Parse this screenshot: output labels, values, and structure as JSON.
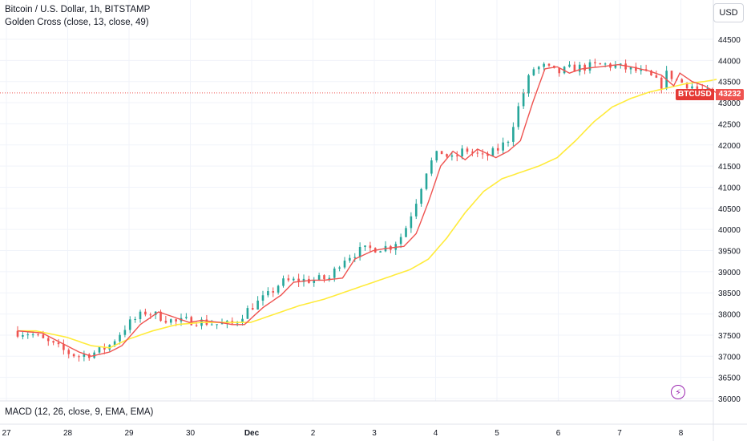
{
  "header": {
    "title": "Bitcoin / U.S. Dollar, 1h, BITSTAMP",
    "indicator": "Golden Cross (close, 13, close, 49)",
    "currency": "USD"
  },
  "macd_label": "MACD (12, 26, close, 9, EMA, EMA)",
  "last_price": {
    "symbol": "BTCUSD",
    "value": "43232"
  },
  "colors": {
    "up": "#26a69a",
    "down": "#ef5350",
    "fast_ma": "#ef5350",
    "slow_ma": "#ffeb3b",
    "accent": "#9c27b0"
  },
  "icons": {
    "bolt": "lightning-icon"
  },
  "chart_data": {
    "type": "line",
    "ylim": [
      36000,
      44700
    ],
    "y_ticks": [
      36000,
      36500,
      37000,
      37500,
      38000,
      38500,
      39000,
      39500,
      40000,
      40500,
      41000,
      41500,
      42000,
      42500,
      43000,
      43500,
      44000,
      44500
    ],
    "x_tick_labels": [
      "27",
      "28",
      "29",
      "30",
      "Dec",
      "2",
      "3",
      "4",
      "5",
      "6",
      "7",
      "8"
    ],
    "x_range_days": [
      0,
      11.7
    ],
    "series": [
      {
        "x": [
          0,
          0.4,
          0.8,
          1.0,
          1.2,
          1.5,
          1.7,
          2.0,
          2.3,
          2.5,
          2.8,
          3.0,
          3.3,
          3.5,
          3.7,
          4.0,
          4.3,
          4.5,
          4.8,
          5.0,
          5.3,
          5.5,
          5.8,
          6.0,
          6.3,
          6.5,
          6.7,
          6.9,
          7.1,
          7.3,
          7.5,
          7.8,
          8.0,
          8.2,
          8.4,
          8.6,
          8.8,
          9.0,
          9.2,
          9.5,
          9.8,
          10.0,
          10.3,
          10.5,
          10.7,
          10.8,
          11.0,
          11.2,
          11.4
        ],
        "values": [
          37600,
          37550,
          37250,
          37100,
          37000,
          37100,
          37250,
          37750,
          38050,
          37950,
          37800,
          37850,
          37800,
          37750,
          37750,
          38150,
          38450,
          38750,
          38800,
          38800,
          38850,
          39300,
          39500,
          39550,
          39600,
          39900,
          40650,
          41500,
          41850,
          41650,
          41900,
          41700,
          41850,
          42100,
          43000,
          43800,
          43850,
          43700,
          43800,
          43850,
          43900,
          43850,
          43750,
          43650,
          43400,
          43700,
          43500,
          43400,
          43232
        ]
      },
      {
        "x": [
          0,
          0.3,
          0.8,
          1.2,
          1.5,
          1.8,
          2.2,
          2.6,
          3.0,
          3.4,
          3.8,
          4.2,
          4.6,
          5.0,
          5.4,
          5.8,
          6.1,
          6.4,
          6.7,
          7.0,
          7.3,
          7.6,
          7.9,
          8.2,
          8.5,
          8.8,
          9.1,
          9.4,
          9.7,
          10.0,
          10.3,
          10.6,
          10.9,
          11.2,
          11.4
        ],
        "values": [
          37600,
          37600,
          37450,
          37250,
          37200,
          37400,
          37600,
          37750,
          37800,
          37800,
          37800,
          38000,
          38200,
          38350,
          38550,
          38750,
          38900,
          39050,
          39300,
          39800,
          40400,
          40900,
          41200,
          41350,
          41500,
          41700,
          42100,
          42550,
          42900,
          43100,
          43250,
          43350,
          43450,
          43500,
          43550
        ]
      }
    ]
  }
}
